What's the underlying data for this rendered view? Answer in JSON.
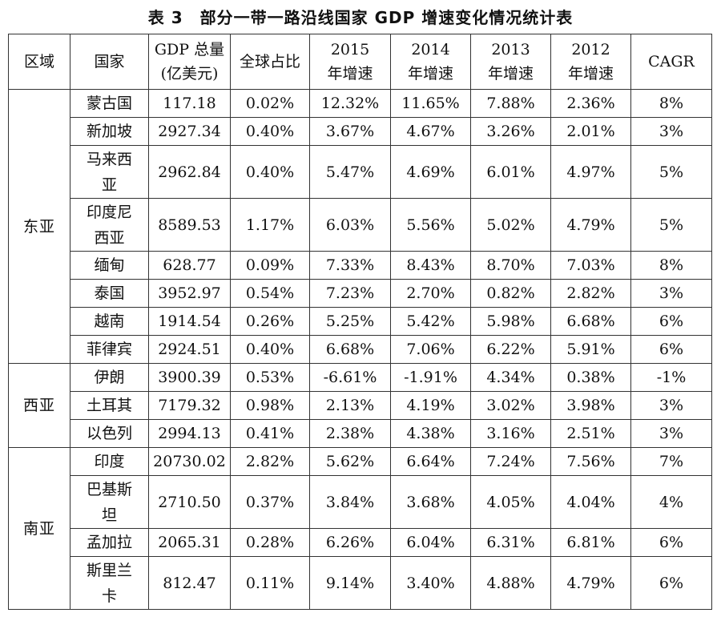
{
  "title": "表 3　部分一带一路沿线国家 GDP 增速变化情况统计表",
  "headers": [
    "区域",
    "国家",
    "GDP 总量 (亿美元)",
    "全球占比",
    "2015 年增速",
    "2014 年增速",
    "2013 年增速",
    "2012 年增速",
    "CAGR"
  ],
  "regions": [
    {
      "name": "东亚",
      "rows": [
        {
          "country": "蒙古国",
          "gdp": "117.18",
          "share": "0.02%",
          "g2015": "12.32%",
          "g2014": "11.65%",
          "g2013": "7.88%",
          "g2012": "2.36%",
          "cagr": "8%"
        },
        {
          "country": "新加坡",
          "gdp": "2927.34",
          "share": "0.40%",
          "g2015": "3.67%",
          "g2014": "4.67%",
          "g2013": "3.26%",
          "g2012": "2.01%",
          "cagr": "3%"
        },
        {
          "country": "马来西亚",
          "gdp": "2962.84",
          "share": "0.40%",
          "g2015": "5.47%",
          "g2014": "4.69%",
          "g2013": "6.01%",
          "g2012": "4.97%",
          "cagr": "5%"
        },
        {
          "country": "印度尼西亚",
          "gdp": "8589.53",
          "share": "1.17%",
          "g2015": "6.03%",
          "g2014": "5.56%",
          "g2013": "5.02%",
          "g2012": "4.79%",
          "cagr": "5%"
        },
        {
          "country": "缅甸",
          "gdp": "628.77",
          "share": "0.09%",
          "g2015": "7.33%",
          "g2014": "8.43%",
          "g2013": "8.70%",
          "g2012": "7.03%",
          "cagr": "8%"
        },
        {
          "country": "泰国",
          "gdp": "3952.97",
          "share": "0.54%",
          "g2015": "7.23%",
          "g2014": "2.70%",
          "g2013": "0.82%",
          "g2012": "2.82%",
          "cagr": "3%"
        },
        {
          "country": "越南",
          "gdp": "1914.54",
          "share": "0.26%",
          "g2015": "5.25%",
          "g2014": "5.42%",
          "g2013": "5.98%",
          "g2012": "6.68%",
          "cagr": "6%"
        },
        {
          "country": "菲律宾",
          "gdp": "2924.51",
          "share": "0.40%",
          "g2015": "6.68%",
          "g2014": "7.06%",
          "g2013": "6.22%",
          "g2012": "5.91%",
          "cagr": "6%"
        }
      ]
    },
    {
      "name": "西亚",
      "rows": [
        {
          "country": "伊朗",
          "gdp": "3900.39",
          "share": "0.53%",
          "g2015": "-6.61%",
          "g2014": "-1.91%",
          "g2013": "4.34%",
          "g2012": "0.38%",
          "cagr": "-1%"
        },
        {
          "country": "土耳其",
          "gdp": "7179.32",
          "share": "0.98%",
          "g2015": "2.13%",
          "g2014": "4.19%",
          "g2013": "3.02%",
          "g2012": "3.98%",
          "cagr": "3%"
        },
        {
          "country": "以色列",
          "gdp": "2994.13",
          "share": "0.41%",
          "g2015": "2.38%",
          "g2014": "4.38%",
          "g2013": "3.16%",
          "g2012": "2.51%",
          "cagr": "3%"
        }
      ]
    },
    {
      "name": "南亚",
      "rows": [
        {
          "country": "印度",
          "gdp": "20730.02",
          "share": "2.82%",
          "g2015": "5.62%",
          "g2014": "6.64%",
          "g2013": "7.24%",
          "g2012": "7.56%",
          "cagr": "7%"
        },
        {
          "country": "巴基斯坦",
          "gdp": "2710.50",
          "share": "0.37%",
          "g2015": "3.84%",
          "g2014": "3.68%",
          "g2013": "4.05%",
          "g2012": "4.04%",
          "cagr": "4%"
        },
        {
          "country": "孟加拉",
          "gdp": "2065.31",
          "share": "0.28%",
          "g2015": "6.26%",
          "g2014": "6.04%",
          "g2013": "6.31%",
          "g2012": "6.81%",
          "cagr": "6%"
        },
        {
          "country": "斯里兰卡",
          "gdp": "812.47",
          "share": "0.11%",
          "g2015": "9.14%",
          "g2014": "3.40%",
          "g2013": "4.88%",
          "g2012": "4.79%",
          "cagr": "6%"
        }
      ]
    }
  ]
}
